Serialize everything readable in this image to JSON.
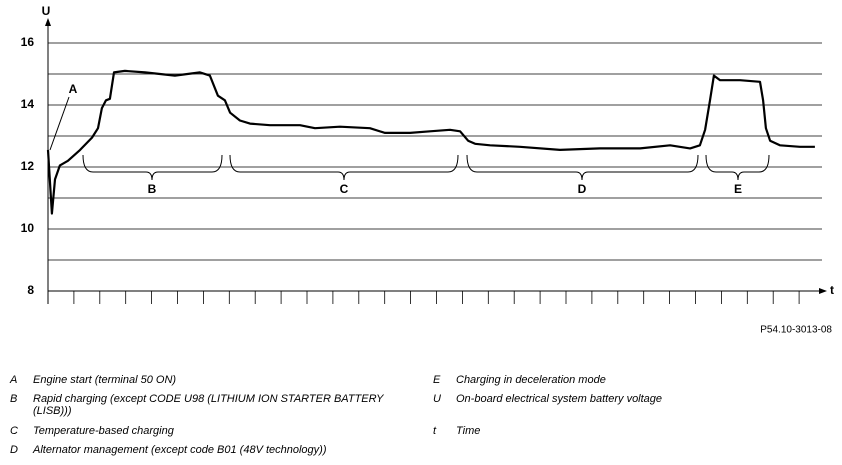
{
  "chart_data": {
    "type": "line",
    "y_label": "U",
    "x_label": "t",
    "code": "P54.10-3013-08",
    "ylim": [
      8,
      16.9
    ],
    "yticks": [
      8,
      10,
      12,
      14,
      16
    ],
    "minor_yticks": [
      9,
      11,
      13,
      15
    ],
    "grid": true,
    "xlim": [
      0,
      30
    ],
    "xtick_marks": [
      0,
      1,
      2,
      3,
      4,
      5,
      6,
      7,
      8,
      9,
      10,
      11,
      12,
      13,
      14,
      15,
      16,
      17,
      18,
      19,
      20,
      21,
      22,
      23,
      24,
      25,
      26,
      27,
      28,
      29
    ],
    "line_color": "#000000",
    "x": [
      0,
      0.15,
      0.27,
      0.46,
      0.77,
      1.24,
      1.7,
      1.93,
      2.08,
      2.24,
      2.39,
      2.55,
      2.97,
      3.75,
      4.9,
      5.87,
      6.25,
      6.56,
      6.83,
      7.03,
      7.41,
      7.8,
      8.57,
      9.73,
      10.31,
      11.27,
      12.43,
      13.01,
      13.98,
      14.75,
      15.52,
      15.91,
      16.22,
      16.49,
      17.07,
      18.22,
      19.77,
      21.31,
      22.86,
      24.02,
      24.79,
      25.17,
      25.37,
      25.56,
      25.71,
      25.95,
      26.72,
      27.49,
      27.61,
      27.72,
      27.88,
      28.26,
      29.03,
      29.61
    ],
    "values": [
      12.55,
      10.5,
      11.6,
      12.05,
      12.2,
      12.55,
      12.95,
      13.25,
      13.9,
      14.15,
      14.2,
      15.05,
      15.1,
      15.05,
      14.95,
      15.05,
      14.95,
      14.3,
      14.15,
      13.75,
      13.5,
      13.4,
      13.35,
      13.35,
      13.25,
      13.3,
      13.25,
      13.1,
      13.1,
      13.15,
      13.2,
      13.15,
      12.85,
      12.75,
      12.7,
      12.65,
      12.55,
      12.6,
      12.6,
      12.7,
      12.6,
      12.7,
      13.2,
      14.15,
      14.95,
      14.8,
      14.8,
      14.75,
      14.15,
      13.25,
      12.85,
      12.7,
      12.65,
      12.65
    ],
    "annotations": [
      "A",
      "B",
      "C",
      "D",
      "E"
    ],
    "legend": [
      {
        "key": "A",
        "text": "Engine start (terminal 50 ON)"
      },
      {
        "key": "B",
        "text": "Rapid charging (except CODE U98 (LITHIUM ION STARTER BATTERY",
        "text2": "(LISB)))"
      },
      {
        "key": "C",
        "text": "Temperature-based charging"
      },
      {
        "key": "D",
        "text": "Alternator management (except code B01 (48V technology))"
      },
      {
        "key": "E",
        "text": "Charging in deceleration mode"
      },
      {
        "key": "U",
        "text": "On-board electrical system battery voltage"
      },
      {
        "key": "t",
        "text": "Time"
      }
    ]
  }
}
